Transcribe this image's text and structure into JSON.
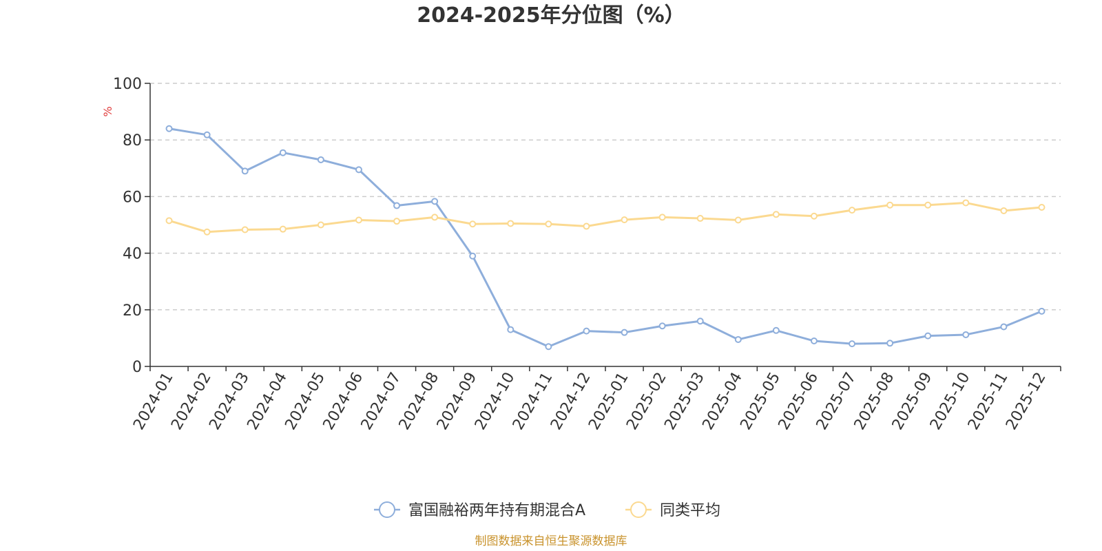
{
  "chart_data": {
    "type": "line",
    "title": "2024-2025年分位图（%）",
    "ylabel": "%",
    "ylim": [
      0,
      100
    ],
    "yticks": [
      0,
      20,
      40,
      60,
      80,
      100
    ],
    "grid": true,
    "legend_position": "bottom-center",
    "categories": [
      "2024-01",
      "2024-02",
      "2024-03",
      "2024-04",
      "2024-05",
      "2024-06",
      "2024-07",
      "2024-08",
      "2024-09",
      "2024-10",
      "2024-11",
      "2024-12",
      "2025-01",
      "2025-02",
      "2025-03",
      "2025-04",
      "2025-05",
      "2025-06",
      "2025-07",
      "2025-08",
      "2025-09",
      "2025-10",
      "2025-11",
      "2025-12"
    ],
    "series": [
      {
        "name": "富国融裕两年持有期混合A",
        "color": "#8eaedb",
        "values": [
          84,
          81.8,
          69,
          75.5,
          73,
          69.5,
          56.8,
          58.3,
          39,
          13,
          7,
          12.5,
          12,
          14.3,
          16,
          9.5,
          12.7,
          9,
          8,
          8.2,
          10.8,
          11.2,
          14,
          19.5
        ]
      },
      {
        "name": "同类平均",
        "color": "#fbd990",
        "values": [
          51.5,
          47.5,
          48.3,
          48.5,
          50,
          51.7,
          51.3,
          52.7,
          50.3,
          50.5,
          50.3,
          49.5,
          51.8,
          52.7,
          52.3,
          51.7,
          53.7,
          53.1,
          55.2,
          57,
          57,
          57.8,
          55,
          56.2
        ]
      }
    ]
  },
  "unit_color": "#e03b3b",
  "source_text": "制图数据来自恒生聚源数据库",
  "source_color": "#c9932d"
}
